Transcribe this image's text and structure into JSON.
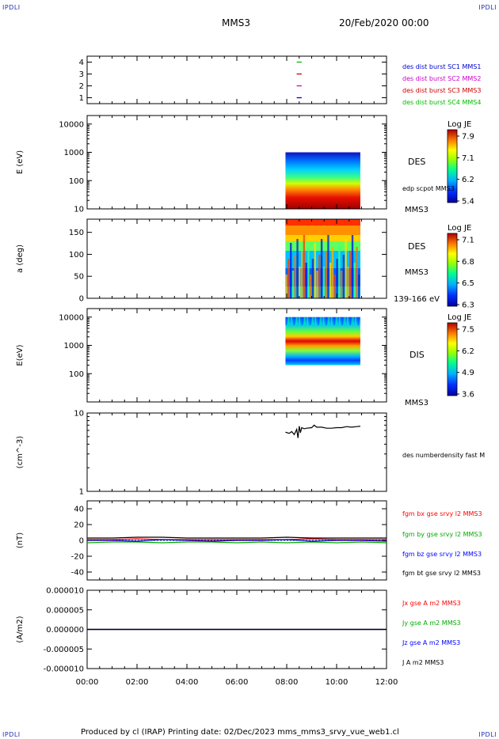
{
  "corners": {
    "tl": "IPDLI",
    "tr": "IPDLI",
    "bl": "IPDLI",
    "br": "IPDLI"
  },
  "header": {
    "title": "MMS3",
    "date": "20/Feb/2020 00:00"
  },
  "footer": {
    "text": "Produced by cl (IRAP)   Printing date: 02/Dec/2023   mms_mms3_srvy_vue_web1.cl"
  },
  "colors": {
    "mms1": "#0000cc",
    "mms2": "#cc00cc",
    "mms3": "#cc0000",
    "mms4": "#00bb00",
    "bx": "#ff0000",
    "by": "#00aa00",
    "bz": "#0000ff",
    "bt": "#000000"
  },
  "chart_data": [
    {
      "type": "scatter",
      "id": "burst",
      "ylim": [
        0.5,
        4.5
      ],
      "yticks": [
        "1",
        "2",
        "3",
        "4"
      ],
      "xlim": [
        0,
        12
      ],
      "series": [
        {
          "name": "des dist burst SC1 MMS1",
          "y": 1,
          "x": [
            8.4,
            8.6
          ]
        },
        {
          "name": "des dist burst SC2 MMS2",
          "y": 2,
          "x": [
            8.4,
            8.6
          ]
        },
        {
          "name": "des dist burst SC3 MMS3",
          "y": 3,
          "x": [
            8.4,
            8.6
          ]
        },
        {
          "name": "des dist burst SC4 MMS4",
          "y": 4,
          "x": [
            8.4,
            8.6
          ]
        }
      ]
    },
    {
      "type": "heatmap",
      "id": "des_energy",
      "ylabel": "E (eV)",
      "yscale": "log",
      "ylim": [
        10,
        20000
      ],
      "yticks": [
        "10",
        "100",
        "1000",
        "10000"
      ],
      "xlim": [
        0,
        12
      ],
      "data_x": [
        7.95,
        10.95
      ],
      "data_y": [
        10,
        1000
      ],
      "label": "DES",
      "label2": "edp scpot MMS3",
      "label3": "MMS3",
      "colorbar": {
        "title": "Log JE",
        "ticks": [
          "7.9",
          "7.1",
          "6.2",
          "5.4"
        ]
      }
    },
    {
      "type": "heatmap",
      "id": "des_pitch",
      "ylabel": "a (deg)",
      "ylim": [
        0,
        180
      ],
      "yticks": [
        "0",
        "50",
        "100",
        "150"
      ],
      "xlim": [
        0,
        12
      ],
      "data_x": [
        7.95,
        10.95
      ],
      "data_y": [
        0,
        180
      ],
      "label": "DES",
      "label2": "MMS3",
      "label3": "139-166 eV",
      "colorbar": {
        "title": "Log JE",
        "ticks": [
          "7.1",
          "6.8",
          "6.5",
          "6.3"
        ]
      }
    },
    {
      "type": "heatmap",
      "id": "dis_energy",
      "ylabel": "E(eV)",
      "yscale": "log",
      "ylim": [
        10,
        20000
      ],
      "yticks": [
        "100",
        "1000",
        "10000"
      ],
      "xlim": [
        0,
        12
      ],
      "data_x": [
        7.95,
        10.95
      ],
      "data_y": [
        200,
        10000
      ],
      "label": "DIS",
      "label2": "MMS3",
      "colorbar": {
        "title": "Log JE",
        "ticks": [
          "7.5",
          "6.2",
          "4.9",
          "3.6"
        ]
      }
    },
    {
      "type": "line",
      "id": "density",
      "ylabel": "(cm^-3)",
      "yscale": "log",
      "ylim": [
        1,
        10
      ],
      "yticks": [
        "1",
        "10"
      ],
      "xlim": [
        0,
        12
      ],
      "series": [
        {
          "name": "des numberdensity fast M",
          "x": [
            7.95,
            8.1,
            8.2,
            8.3,
            8.4,
            8.45,
            8.5,
            8.55,
            8.6,
            8.7,
            8.8,
            9.0,
            9.1,
            9.2,
            9.4,
            9.6,
            9.8,
            10.0,
            10.2,
            10.4,
            10.6,
            10.8,
            10.95
          ],
          "y": [
            5.7,
            5.5,
            5.8,
            5.3,
            6.2,
            4.8,
            6.8,
            5.6,
            6.5,
            6.3,
            6.4,
            6.5,
            7.0,
            6.6,
            6.6,
            6.4,
            6.4,
            6.5,
            6.5,
            6.7,
            6.6,
            6.7,
            6.8
          ]
        }
      ]
    },
    {
      "type": "line",
      "id": "magnetic",
      "ylabel": "(nT)",
      "ylim": [
        -50,
        50
      ],
      "yticks": [
        "-40",
        "-20",
        "0",
        "20",
        "40"
      ],
      "xlim": [
        0,
        12
      ],
      "series": [
        {
          "name": "fgm bx gse srvy l2 MMS3",
          "x": [
            0,
            1,
            2,
            3,
            4,
            5,
            6,
            7,
            8,
            9,
            10,
            11,
            12
          ],
          "y": [
            1,
            1,
            2,
            1,
            1,
            1,
            1,
            1,
            1,
            2,
            1,
            1,
            1
          ]
        },
        {
          "name": "fgm by gse srvy l2 MMS3",
          "x": [
            0,
            1,
            2,
            3,
            4,
            5,
            6,
            7,
            8,
            9,
            10,
            11,
            12
          ],
          "y": [
            -3,
            -2,
            -2,
            -3,
            -2,
            -2,
            -3,
            -2,
            -3,
            -2,
            -3,
            -2,
            -3
          ]
        },
        {
          "name": "fgm bz gse srvy l2 MMS3",
          "x": [
            0,
            1,
            2,
            3,
            4,
            5,
            6,
            7,
            8,
            9,
            10,
            11,
            12
          ],
          "y": [
            0,
            0,
            -1,
            1,
            0,
            -1,
            0,
            0,
            1,
            -1,
            0,
            0,
            -1
          ]
        },
        {
          "name": "fgm bt gse srvy l2 MMS3",
          "x": [
            0,
            1,
            2,
            3,
            4,
            5,
            6,
            7,
            8,
            9,
            10,
            11,
            12
          ],
          "y": [
            3,
            3,
            4,
            4,
            3,
            3,
            3,
            3,
            4,
            3,
            3,
            3,
            3
          ]
        }
      ]
    },
    {
      "type": "line",
      "id": "current",
      "ylabel": "(A/m2)",
      "ylim": [
        -1e-05,
        1e-05
      ],
      "yticks": [
        "-0.000010",
        "-0.000005",
        "0.000000",
        "0.000005",
        "0.000010"
      ],
      "xlim": [
        0,
        12
      ],
      "xticks": [
        "00:00",
        "02:00",
        "04:00",
        "06:00",
        "08:00",
        "10:00",
        "12:00"
      ],
      "series": [
        {
          "name": "Jx gse A m2 MMS3",
          "x": [
            0,
            12
          ],
          "y": [
            0,
            0
          ]
        },
        {
          "name": "Jy gse A m2 MMS3",
          "x": [
            0,
            12
          ],
          "y": [
            0,
            0
          ]
        },
        {
          "name": "Jz gse A m2 MMS3",
          "x": [
            0,
            12
          ],
          "y": [
            0,
            0
          ]
        },
        {
          "name": "J A m2 MMS3",
          "x": [
            0,
            12
          ],
          "y": [
            0,
            0
          ]
        }
      ]
    }
  ]
}
